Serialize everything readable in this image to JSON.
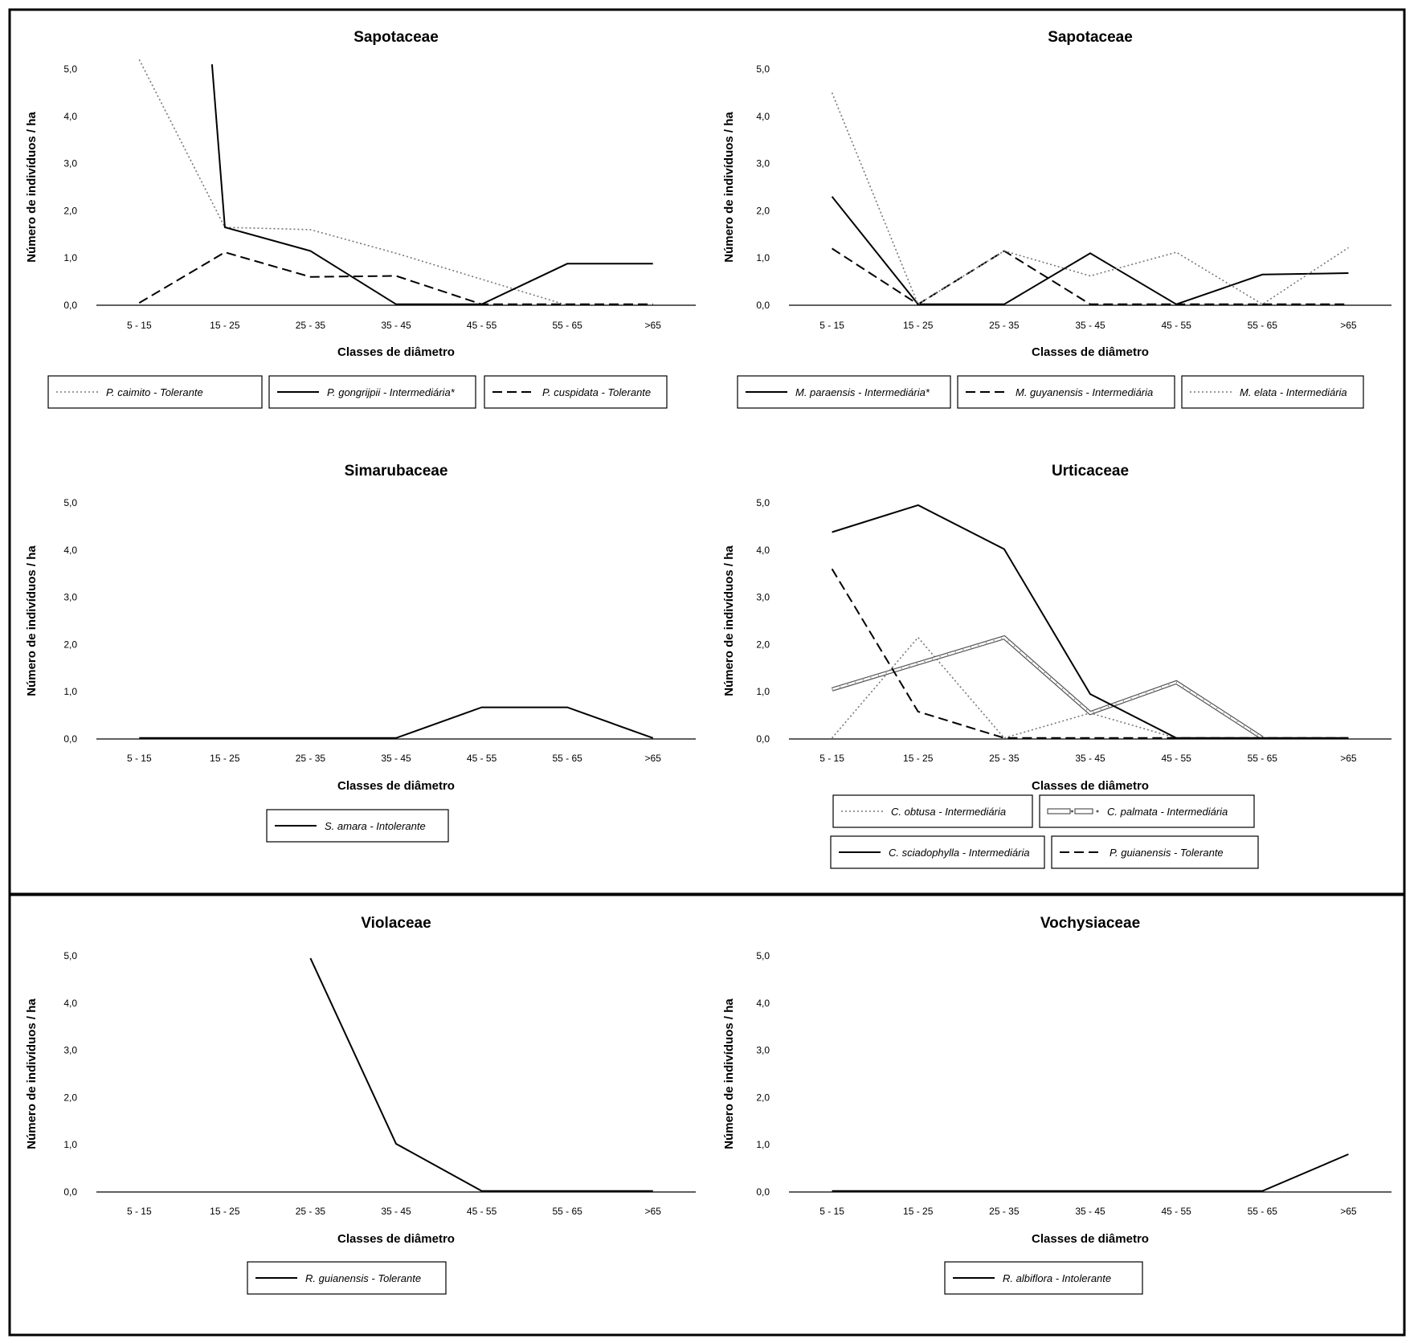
{
  "chart_data": [
    {
      "type": "line",
      "title": "Sapotaceae",
      "xlabel": "Classes de diâmetro",
      "ylabel": "Número de indivíduos / ha",
      "categories": [
        "5 - 15",
        "15 - 25",
        "25 - 35",
        "35 - 45",
        "45 - 55",
        "55 - 65",
        ">65"
      ],
      "yticks": [
        "0,0",
        "1,0",
        "2,0",
        "3,0",
        "4,0",
        "5,0"
      ],
      "ylim": [
        0,
        5
      ],
      "legend_rows": [
        [
          0,
          1,
          2
        ]
      ],
      "series": [
        {
          "name": "P. caimito - Tolerante",
          "style": "dotted",
          "values": [
            5.2,
            1.65,
            1.6,
            1.1,
            0.55,
            0,
            null
          ]
        },
        {
          "name": "P. gongrijpii - Intermediária*",
          "style": "solid",
          "values": [
            null,
            null,
            null,
            null,
            null,
            null,
            null
          ],
          "path": [
            [
              0.85,
              5.1
            ],
            [
              1,
              1.65
            ],
            [
              2,
              1.15
            ],
            [
              3,
              0.02
            ],
            [
              4,
              0.02
            ],
            [
              5,
              0.88
            ],
            [
              6,
              0.88
            ]
          ]
        },
        {
          "name": "P. cuspidata -  Tolerante",
          "style": "dashed",
          "values": [
            0.05,
            1.12,
            0.6,
            0.62,
            0.02,
            0.02,
            0.02
          ]
        }
      ]
    },
    {
      "type": "line",
      "title": "Sapotaceae",
      "xlabel": "Classes de diâmetro",
      "ylabel": "Número de indivíduos / ha",
      "categories": [
        "5 - 15",
        "15 - 25",
        "25 - 35",
        "35 - 45",
        "45 - 55",
        "55 - 65",
        ">65"
      ],
      "yticks": [
        "0,0",
        "1,0",
        "2,0",
        "3,0",
        "4,0",
        "5,0"
      ],
      "ylim": [
        0,
        5
      ],
      "legend_rows": [
        [
          0,
          1,
          2
        ]
      ],
      "series": [
        {
          "name": "M. paraensis -  Intermediária*",
          "style": "solid",
          "values": [
            2.3,
            0.02,
            0.02,
            1.1,
            0.02,
            0.65,
            0.68
          ]
        },
        {
          "name": "M. guyanensis - Intermediária",
          "style": "dashed",
          "values": [
            1.2,
            0.02,
            1.15,
            0.02,
            0.02,
            0.02,
            0.02
          ]
        },
        {
          "name": "M. elata - Intermediária",
          "style": "dotted",
          "values": [
            4.5,
            0.02,
            1.15,
            0.62,
            1.12,
            0.02,
            1.22
          ]
        }
      ]
    },
    {
      "type": "line",
      "title": "Simarubaceae",
      "xlabel": "Classes de diâmetro",
      "ylabel": "Número de indivíduos / ha",
      "categories": [
        "5 - 15",
        "15 - 25",
        "25 - 35",
        "35 - 45",
        "45 - 55",
        "55 - 65",
        ">65"
      ],
      "yticks": [
        "0,0",
        "1,0",
        "2,0",
        "3,0",
        "4,0",
        "5,0"
      ],
      "ylim": [
        0,
        5
      ],
      "legend_rows": [
        [
          0
        ]
      ],
      "series": [
        {
          "name": "S. amara -  Intolerante",
          "style": "solid",
          "values": [
            0.02,
            0.02,
            0.02,
            0.02,
            0.67,
            0.67,
            0.02
          ]
        }
      ]
    },
    {
      "type": "line",
      "title": "Urticaceae",
      "xlabel": "Classes de diâmetro",
      "ylabel": "Número de indivíduos / ha",
      "categories": [
        "5 - 15",
        "15 - 25",
        "25 - 35",
        "35 - 45",
        "45 - 55",
        "55 - 65",
        ">65"
      ],
      "yticks": [
        "0,0",
        "1,0",
        "2,0",
        "3,0",
        "4,0",
        "5,0"
      ],
      "ylim": [
        0,
        5
      ],
      "legend_rows": [
        [
          0,
          1
        ],
        [
          2,
          3
        ]
      ],
      "series": [
        {
          "name": "C. obtusa -  Intermediária",
          "style": "dotted",
          "values": [
            0.02,
            2.15,
            0.02,
            0.55,
            0.02,
            null,
            null
          ]
        },
        {
          "name": "C. palmata - Intermediária",
          "style": "double",
          "values": [
            1.05,
            1.6,
            2.15,
            0.55,
            1.2,
            0.02,
            null
          ]
        },
        {
          "name": "C. sciadophylla - Intermediária",
          "style": "solid",
          "values": [
            4.38,
            4.95,
            4.02,
            0.95,
            0.02,
            0.02,
            0.02
          ]
        },
        {
          "name": "P. guianensis - Tolerante",
          "style": "dashed",
          "values": [
            3.6,
            0.58,
            0.02,
            0.02,
            0.02,
            0.02,
            0.02
          ]
        }
      ]
    },
    {
      "type": "line",
      "title": "Violaceae",
      "xlabel": "Classes de diâmetro",
      "ylabel": "Número de indivíduos / ha",
      "categories": [
        "5 - 15",
        "15 - 25",
        "25 - 35",
        "35 - 45",
        "45 - 55",
        "55 - 65",
        ">65"
      ],
      "yticks": [
        "0,0",
        "1,0",
        "2,0",
        "3,0",
        "4,0",
        "5,0"
      ],
      "ylim": [
        0,
        5
      ],
      "legend_rows": [
        [
          0
        ]
      ],
      "series": [
        {
          "name": "R. guianensis -  Tolerante",
          "style": "solid",
          "values": [
            null,
            null,
            4.95,
            1.02,
            0.02,
            0.02,
            0.02
          ]
        }
      ]
    },
    {
      "type": "line",
      "title": "Vochysiaceae",
      "xlabel": "Classes de diâmetro",
      "ylabel": "Número de indivíduos / ha",
      "categories": [
        "5 - 15",
        "15 - 25",
        "25 - 35",
        "35 - 45",
        "45 - 55",
        "55 - 65",
        ">65"
      ],
      "yticks": [
        "0,0",
        "1,0",
        "2,0",
        "3,0",
        "4,0",
        "5,0"
      ],
      "ylim": [
        0,
        5
      ],
      "legend_rows": [
        [
          0
        ]
      ],
      "series": [
        {
          "name": "R. albiflora -  Intolerante",
          "style": "solid",
          "values": [
            0.02,
            0.02,
            0.02,
            0.02,
            0.02,
            0.02,
            0.8
          ]
        }
      ]
    }
  ]
}
